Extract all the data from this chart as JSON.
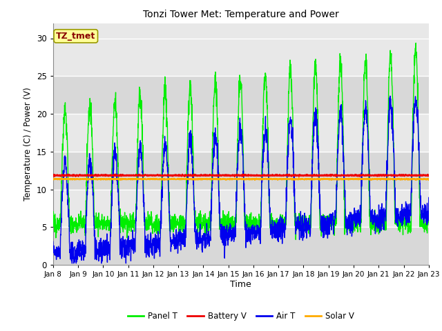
{
  "title": "Tonzi Tower Met: Temperature and Power",
  "xlabel": "Time",
  "ylabel": "Temperature (C) / Power (V)",
  "ylim": [
    0,
    32
  ],
  "yticks": [
    0,
    5,
    10,
    15,
    20,
    25,
    30
  ],
  "x_tick_labels": [
    "Jan 8",
    "Jan 9",
    "Jan 10",
    "Jan 11",
    "Jan 12",
    "Jan 13",
    "Jan 14",
    "Jan 15",
    "Jan 16",
    "Jan 17",
    "Jan 18",
    "Jan 19",
    "Jan 20",
    "Jan 21",
    "Jan 22",
    "Jan 23"
  ],
  "fig_bg_color": "#ffffff",
  "plot_bg_color": "#e8e8e8",
  "band_colors": [
    "#e0e0e0",
    "#d0d0d0"
  ],
  "grid_line_color": "#c8c8c8",
  "series_colors": {
    "panel_t": "#00ee00",
    "battery_v": "#ee0000",
    "air_t": "#0000ee",
    "solar_v": "#ffaa00"
  },
  "battery_v_level": 11.85,
  "solar_v_level": 11.35,
  "annotation_text": "TZ_tmet",
  "annotation_color": "#880000",
  "annotation_bg": "#ffff99",
  "annotation_edge": "#999900"
}
